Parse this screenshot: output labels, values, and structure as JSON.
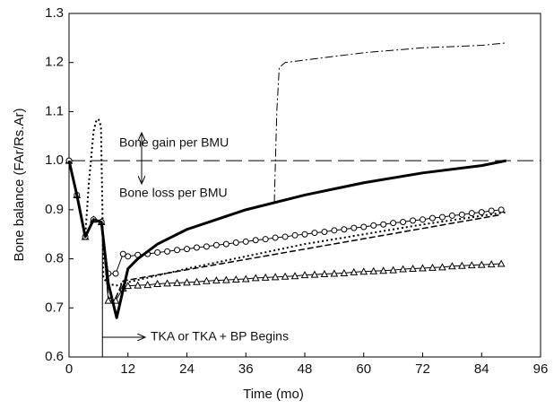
{
  "chart_data": {
    "type": "line",
    "x_label": "Time (mo)",
    "y_label": "Bone balance (FAr/Rs.Ar)",
    "xlim": [
      0,
      96
    ],
    "xticks": [
      0,
      12,
      24,
      36,
      48,
      60,
      72,
      84,
      96
    ],
    "ylim": [
      0.6,
      1.3
    ],
    "yticks": [
      0.6,
      0.7,
      0.8,
      0.9,
      {
        "value": 1,
        "label": "1.0"
      },
      1.1,
      1.2,
      1.3
    ],
    "grid": false,
    "annotations": [
      {
        "text": "Bone gain per BMU"
      },
      {
        "text": "Bone loss per BMU"
      },
      {
        "text": "TKA or TKA + BP Begins",
        "x": 6.8
      }
    ],
    "series": [
      {
        "color": "#000000",
        "style": "longdash",
        "width": 1,
        "marker": "none",
        "x": [
          0,
          96
        ],
        "values": [
          1,
          1
        ]
      },
      {
        "color": "#000000",
        "style": "dotted",
        "width": 2,
        "marker": "none",
        "x": [
          0,
          1.6,
          3.3,
          4,
          5,
          5.5,
          6,
          6.5,
          6.8,
          7,
          8,
          9.5,
          11,
          24,
          48,
          72,
          89
        ],
        "values": [
          1,
          0.93,
          0.845,
          0.95,
          1.06,
          1.08,
          1.085,
          1.07,
          0.9,
          0.76,
          0.75,
          0.745,
          0.75,
          0.78,
          0.83,
          0.87,
          0.895
        ]
      },
      {
        "color": "#000000",
        "style": "dashed",
        "width": 1.5,
        "marker": "none",
        "x": [
          0,
          1.6,
          3.3,
          5,
          6.6,
          8,
          9.5,
          11,
          88
        ],
        "values": [
          1,
          0.93,
          0.845,
          0.88,
          0.875,
          0.72,
          0.72,
          0.755,
          0.89
        ]
      },
      {
        "color": "#000000",
        "style": "dashdot",
        "width": 1,
        "marker": "none",
        "x": [
          41.8,
          42.3,
          42.8,
          44,
          48,
          60,
          72,
          84,
          89
        ],
        "values": [
          0.915,
          1.1,
          1.19,
          1.2,
          1.205,
          1.22,
          1.23,
          1.235,
          1.24
        ]
      },
      {
        "color": "#000000",
        "style": "solid",
        "width": 1,
        "marker": "triangle",
        "x": [
          0,
          1.6,
          3.3,
          5,
          6.6,
          8,
          9.5,
          11,
          12,
          14,
          16,
          18,
          20,
          22,
          24,
          26,
          28,
          30,
          32,
          34,
          36,
          38,
          40,
          42,
          44,
          46,
          48,
          50,
          52,
          54,
          56,
          58,
          60,
          62,
          64,
          66,
          68,
          70,
          72,
          74,
          76,
          78,
          80,
          82,
          84,
          86,
          88
        ],
        "values": [
          1,
          0.93,
          0.845,
          0.88,
          0.875,
          0.715,
          0.715,
          0.74,
          0.745,
          0.746,
          0.747,
          0.749,
          0.75,
          0.751,
          0.752,
          0.753,
          0.755,
          0.756,
          0.757,
          0.758,
          0.759,
          0.761,
          0.762,
          0.763,
          0.764,
          0.765,
          0.767,
          0.768,
          0.769,
          0.77,
          0.771,
          0.773,
          0.774,
          0.775,
          0.776,
          0.777,
          0.779,
          0.78,
          0.781,
          0.782,
          0.783,
          0.785,
          0.786,
          0.787,
          0.788,
          0.789,
          0.79
        ]
      },
      {
        "color": "#000000",
        "style": "solid",
        "width": 1,
        "marker": "circle",
        "x": [
          0,
          1.6,
          3.3,
          5,
          6.6,
          8,
          9.5,
          11,
          12,
          14,
          16,
          18,
          20,
          22,
          24,
          26,
          28,
          30,
          32,
          34,
          36,
          38,
          40,
          42,
          44,
          46,
          48,
          50,
          52,
          54,
          56,
          58,
          60,
          62,
          64,
          66,
          68,
          70,
          72,
          74,
          76,
          78,
          80,
          82,
          84,
          86,
          88
        ],
        "values": [
          1,
          0.93,
          0.845,
          0.88,
          0.875,
          0.77,
          0.77,
          0.81,
          0.805,
          0.808,
          0.81,
          0.813,
          0.815,
          0.818,
          0.82,
          0.823,
          0.825,
          0.828,
          0.83,
          0.833,
          0.835,
          0.838,
          0.84,
          0.843,
          0.845,
          0.848,
          0.85,
          0.853,
          0.855,
          0.858,
          0.86,
          0.863,
          0.865,
          0.868,
          0.87,
          0.873,
          0.875,
          0.878,
          0.88,
          0.883,
          0.885,
          0.888,
          0.89,
          0.893,
          0.895,
          0.898,
          0.9
        ]
      },
      {
        "color": "#000000",
        "style": "solid",
        "width": 3,
        "marker": "none",
        "x": [
          0,
          1.6,
          3.3,
          5,
          6.6,
          8,
          9.7,
          12,
          14,
          18,
          24,
          36,
          48,
          60,
          72,
          84,
          89
        ],
        "values": [
          1,
          0.93,
          0.845,
          0.88,
          0.875,
          0.75,
          0.68,
          0.78,
          0.8,
          0.83,
          0.86,
          0.9,
          0.93,
          0.955,
          0.975,
          0.99,
          1.0
        ]
      }
    ]
  }
}
